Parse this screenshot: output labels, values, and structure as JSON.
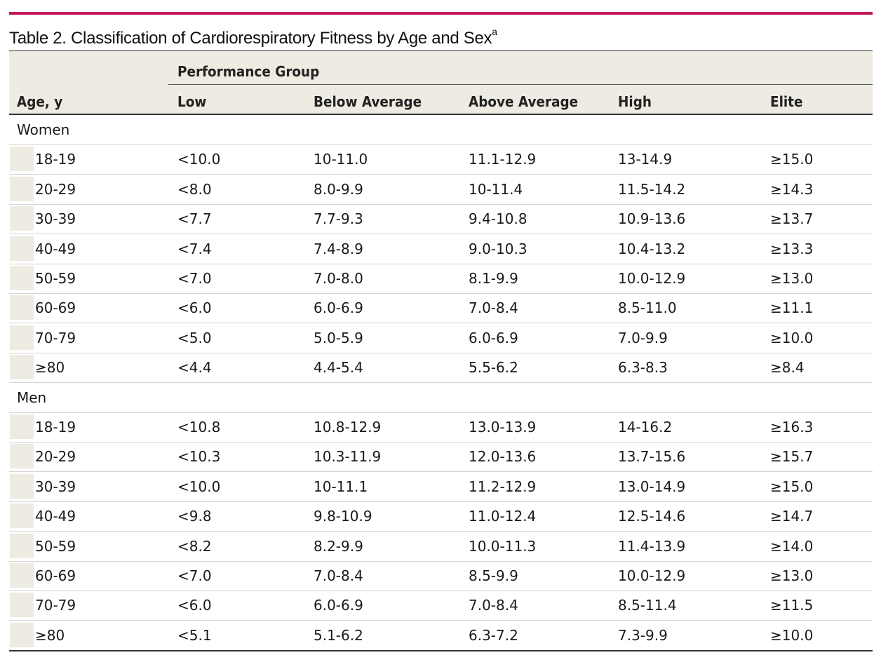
{
  "table": {
    "title": "Table 2. Classification of Cardiorespiratory Fitness by Age and Sex",
    "title_footnote_marker": "a",
    "age_header": "Age, y",
    "group_header": "Performance Group",
    "columns": [
      "Low",
      "Below Average",
      "Above Average",
      "High",
      "Elite"
    ],
    "sections": [
      {
        "label": "Women",
        "rows": [
          {
            "age": "18-19",
            "values": [
              "<10.0",
              "10-11.0",
              "11.1-12.9",
              "13-14.9",
              "≥15.0"
            ]
          },
          {
            "age": "20-29",
            "values": [
              "<8.0",
              "8.0-9.9",
              "10-11.4",
              "11.5-14.2",
              "≥14.3"
            ]
          },
          {
            "age": "30-39",
            "values": [
              "<7.7",
              "7.7-9.3",
              "9.4-10.8",
              "10.9-13.6",
              "≥13.7"
            ]
          },
          {
            "age": "40-49",
            "values": [
              "<7.4",
              "7.4-8.9",
              "9.0-10.3",
              "10.4-13.2",
              "≥13.3"
            ]
          },
          {
            "age": "50-59",
            "values": [
              "<7.0",
              "7.0-8.0",
              "8.1-9.9",
              "10.0-12.9",
              "≥13.0"
            ]
          },
          {
            "age": "60-69",
            "values": [
              "<6.0",
              "6.0-6.9",
              "7.0-8.4",
              "8.5-11.0",
              "≥11.1"
            ]
          },
          {
            "age": "70-79",
            "values": [
              "<5.0",
              "5.0-5.9",
              "6.0-6.9",
              "7.0-9.9",
              "≥10.0"
            ]
          },
          {
            "age": "≥80",
            "values": [
              "<4.4",
              "4.4-5.4",
              "5.5-6.2",
              "6.3-8.3",
              "≥8.4"
            ]
          }
        ]
      },
      {
        "label": "Men",
        "rows": [
          {
            "age": "18-19",
            "values": [
              "<10.8",
              "10.8-12.9",
              "13.0-13.9",
              "14-16.2",
              "≥16.3"
            ]
          },
          {
            "age": "20-29",
            "values": [
              "<10.3",
              "10.3-11.9",
              "12.0-13.6",
              "13.7-15.6",
              "≥15.7"
            ]
          },
          {
            "age": "30-39",
            "values": [
              "<10.0",
              "10-11.1",
              "11.2-12.9",
              "13.0-14.9",
              "≥15.0"
            ]
          },
          {
            "age": "40-49",
            "values": [
              "<9.8",
              "9.8-10.9",
              "11.0-12.4",
              "12.5-14.6",
              "≥14.7"
            ]
          },
          {
            "age": "50-59",
            "values": [
              "<8.2",
              "8.2-9.9",
              "10.0-11.3",
              "11.4-13.9",
              "≥14.0"
            ]
          },
          {
            "age": "60-69",
            "values": [
              "<7.0",
              "7.0-8.4",
              "8.5-9.9",
              "10.0-12.9",
              "≥13.0"
            ]
          },
          {
            "age": "70-79",
            "values": [
              "<6.0",
              "6.0-6.9",
              "7.0-8.4",
              "8.5-11.4",
              "≥11.5"
            ]
          },
          {
            "age": "≥80",
            "values": [
              "<5.1",
              "5.1-6.2",
              "6.3-7.2",
              "7.3-9.9",
              "≥10.0"
            ]
          }
        ]
      }
    ]
  }
}
